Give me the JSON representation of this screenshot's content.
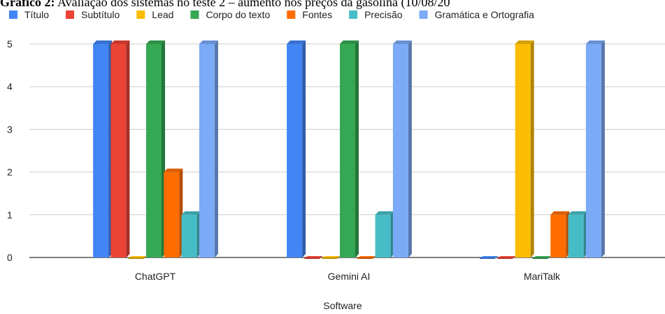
{
  "caption": {
    "prefix": "Gráfico 2:",
    "text": " Avaliação dos sistemas no teste 2 – aumento nos preços da gasolina (10/08/20"
  },
  "chart_data": {
    "type": "bar",
    "title": "Gráfico 2: Avaliação dos sistemas no teste 2 – aumento nos preços da gasolina (10/08/20",
    "xlabel": "Software",
    "ylabel": "",
    "ylim": [
      0,
      5
    ],
    "yticks": [
      "0",
      "1",
      "2",
      "3",
      "4",
      "5"
    ],
    "grid": true,
    "legend_position": "top",
    "categories": [
      "ChatGPT",
      "Gemini AI",
      "MariTalk"
    ],
    "series": [
      {
        "name": "Título",
        "color": "#4285f4",
        "values": [
          5,
          5,
          0
        ]
      },
      {
        "name": "Subtítulo",
        "color": "#ea4335",
        "values": [
          5,
          0,
          0
        ]
      },
      {
        "name": "Lead",
        "color": "#fbbc04",
        "values": [
          0,
          0,
          5
        ]
      },
      {
        "name": "Corpo do texto",
        "color": "#34a853",
        "values": [
          5,
          5,
          0
        ]
      },
      {
        "name": "Fontes",
        "color": "#ff6d01",
        "values": [
          2,
          0,
          1
        ]
      },
      {
        "name": "Precisão",
        "color": "#46bdc6",
        "values": [
          1,
          1,
          1
        ]
      },
      {
        "name": "Gramática e Ortografia",
        "color": "#7baaf7",
        "values": [
          5,
          5,
          5
        ]
      }
    ]
  }
}
